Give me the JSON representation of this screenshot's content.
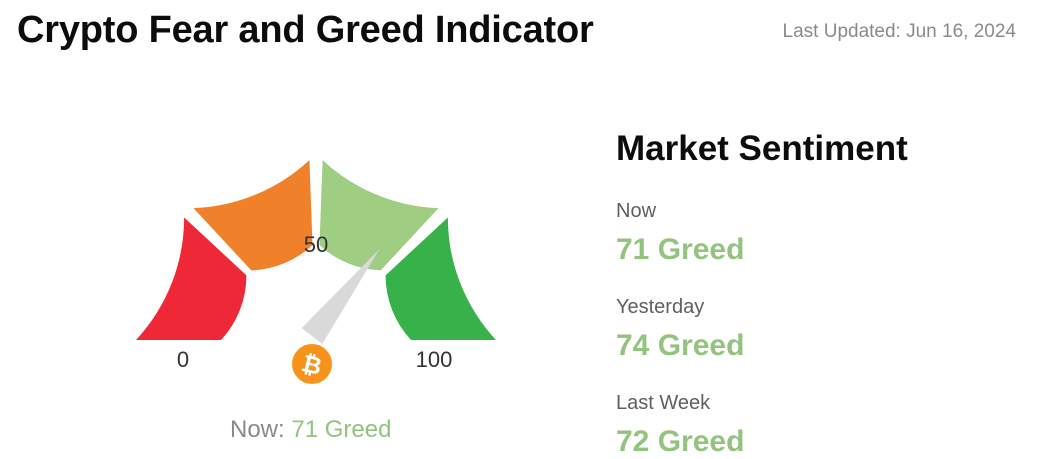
{
  "header": {
    "title": "Crypto Fear and Greed Indicator",
    "last_updated": "Last Updated: Jun 16, 2024"
  },
  "gauge": {
    "min_label": "0",
    "mid_label": "50",
    "max_label": "100",
    "value": 71,
    "min": 0,
    "max": 100,
    "center_icon": "bitcoin-icon",
    "colors": {
      "extreme_fear": "#ee2836",
      "fear": "#f0802a",
      "greed": "#9fcd82",
      "extreme_greed": "#37b24a",
      "needle": "#d9d9d9",
      "bitcoin": "#f7931a"
    },
    "now_prefix": "Now:",
    "now_value": "71 Greed"
  },
  "sentiment": {
    "title": "Market Sentiment",
    "items": [
      {
        "label": "Now",
        "value": "71 Greed"
      },
      {
        "label": "Yesterday",
        "value": "74 Greed"
      },
      {
        "label": "Last Week",
        "value": "72 Greed"
      }
    ]
  }
}
